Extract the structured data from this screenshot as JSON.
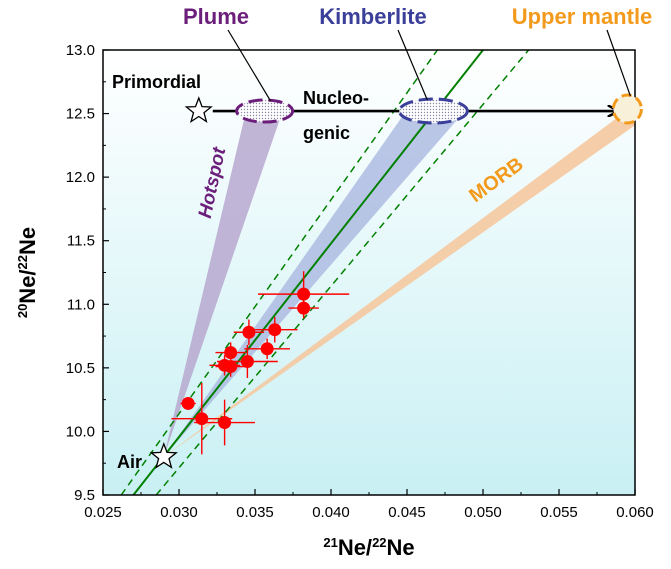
{
  "chart_data": {
    "type": "scatter",
    "xlabel": {
      "sup": "21",
      "text": "Ne/",
      "sup2": "22",
      "text2": "Ne"
    },
    "ylabel": {
      "sup": "20",
      "text": "Ne/",
      "sup2": "22",
      "text2": "Ne"
    },
    "xlim": [
      0.025,
      0.06
    ],
    "ylim": [
      9.5,
      13.0
    ],
    "x_ticks": [
      "0.025",
      "0.030",
      "0.035",
      "0.040",
      "0.045",
      "0.050",
      "0.055",
      "0.060"
    ],
    "y_ticks": [
      "9.5",
      "10.0",
      "10.5",
      "11.0",
      "11.5",
      "12.0",
      "12.5",
      "13.0"
    ],
    "background_gradient": [
      "#ffffff",
      "#c9f0f4"
    ],
    "colors": {
      "data": "#ff0000",
      "fit_line": "#008000",
      "plume": "#6b1f7a",
      "kimberlite": "#3a3f9a",
      "upper_mantle": "#f39a1c",
      "morb": "#f3a65a",
      "plume_fan": "#b7a8cf",
      "kimberlite_fan": "#aab8e0",
      "morb_band": "#f5c9a0"
    },
    "points": [
      {
        "x": 0.0306,
        "y": 10.22,
        "xerr": 0.0005,
        "yerr": 0.04
      },
      {
        "x": 0.0315,
        "y": 10.1,
        "xerr": 0.002,
        "yerr": 0.28
      },
      {
        "x": 0.033,
        "y": 10.07,
        "xerr": 0.002,
        "yerr": 0.18
      },
      {
        "x": 0.033,
        "y": 10.52,
        "xerr": 0.001,
        "yerr": 0.08
      },
      {
        "x": 0.0334,
        "y": 10.62,
        "xerr": 0.001,
        "yerr": 0.08
      },
      {
        "x": 0.0334,
        "y": 10.51,
        "xerr": 0.001,
        "yerr": 0.08
      },
      {
        "x": 0.0345,
        "y": 10.55,
        "xerr": 0.002,
        "yerr": 0.13
      },
      {
        "x": 0.0346,
        "y": 10.78,
        "xerr": 0.001,
        "yerr": 0.1
      },
      {
        "x": 0.0358,
        "y": 10.65,
        "xerr": 0.0015,
        "yerr": 0.08
      },
      {
        "x": 0.0363,
        "y": 10.8,
        "xerr": 0.0015,
        "yerr": 0.1
      },
      {
        "x": 0.0382,
        "y": 11.08,
        "xerr": 0.003,
        "yerr": 0.18
      },
      {
        "x": 0.0382,
        "y": 10.97,
        "xerr": 0.001,
        "yerr": 0.08
      }
    ],
    "fit_line": [
      [
        0.027,
        9.5
      ],
      [
        0.05,
        13.0
      ]
    ],
    "fit_envelope_upper": [
      [
        0.0262,
        9.5
      ],
      [
        0.047,
        13.0
      ]
    ],
    "fit_envelope_lower": [
      [
        0.0285,
        9.5
      ],
      [
        0.053,
        13.0
      ]
    ],
    "air": {
      "x": 0.029,
      "y": 9.8,
      "label": "Air"
    },
    "primordial": {
      "x": 0.0313,
      "y": 12.52,
      "label": "Primordial"
    },
    "plume": {
      "x": 0.0355,
      "y": 12.52,
      "label": "Plume"
    },
    "kimberlite": {
      "x": 0.0466,
      "y": 12.52,
      "label": "Kimberlite"
    },
    "upper_mantle": {
      "x": 0.0595,
      "y": 12.52,
      "label": "Upper mantle"
    },
    "annotations": {
      "hotspot": "Hotspot",
      "morb": "MORB",
      "nucleogenic_line1": "Nucleo-",
      "nucleogenic_line2": "genic"
    }
  }
}
